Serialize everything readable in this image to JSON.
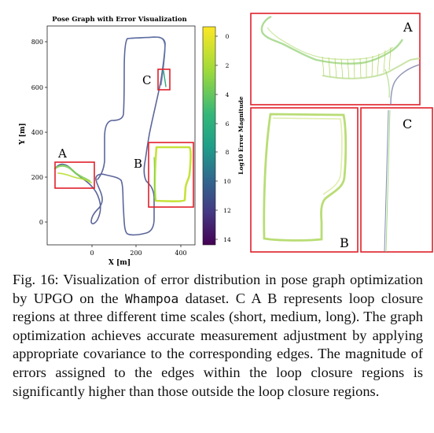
{
  "figure": {
    "main_plot": {
      "title": "Pose Graph with Error Visualization",
      "xlabel": "X [m]",
      "ylabel": "Y [m]",
      "x_ticks": [
        "0",
        "200",
        "400"
      ],
      "y_ticks": [
        "800",
        "600",
        "400",
        "200",
        "0"
      ],
      "region_labels": {
        "a": "A",
        "b": "B",
        "c": "C"
      }
    },
    "colorbar": {
      "label": "Log10 Error Magnitude",
      "ticks": [
        "0",
        "2",
        "4",
        "6",
        "8",
        "10",
        "12",
        "14"
      ],
      "colormap": "viridis-reversed"
    },
    "insets": {
      "a": "A",
      "b": "B",
      "c": "C"
    },
    "region_box_color": "#e0202a"
  },
  "caption": {
    "fig_label": "Fig. 16:",
    "text_before": " Visualization of error distribution in pose graph optimization by UPGO on the ",
    "dataset": "Whampoa",
    "text_after": " dataset. C A B represents loop closure regions at three different time scales (short, medium, long). The graph optimization achieves accurate measurement adjustment by applying appropriate covariance to the corresponding edges. The magnitude of errors assigned to the edges within the loop closure regions is significantly higher than those outside the loop closure regions."
  }
}
